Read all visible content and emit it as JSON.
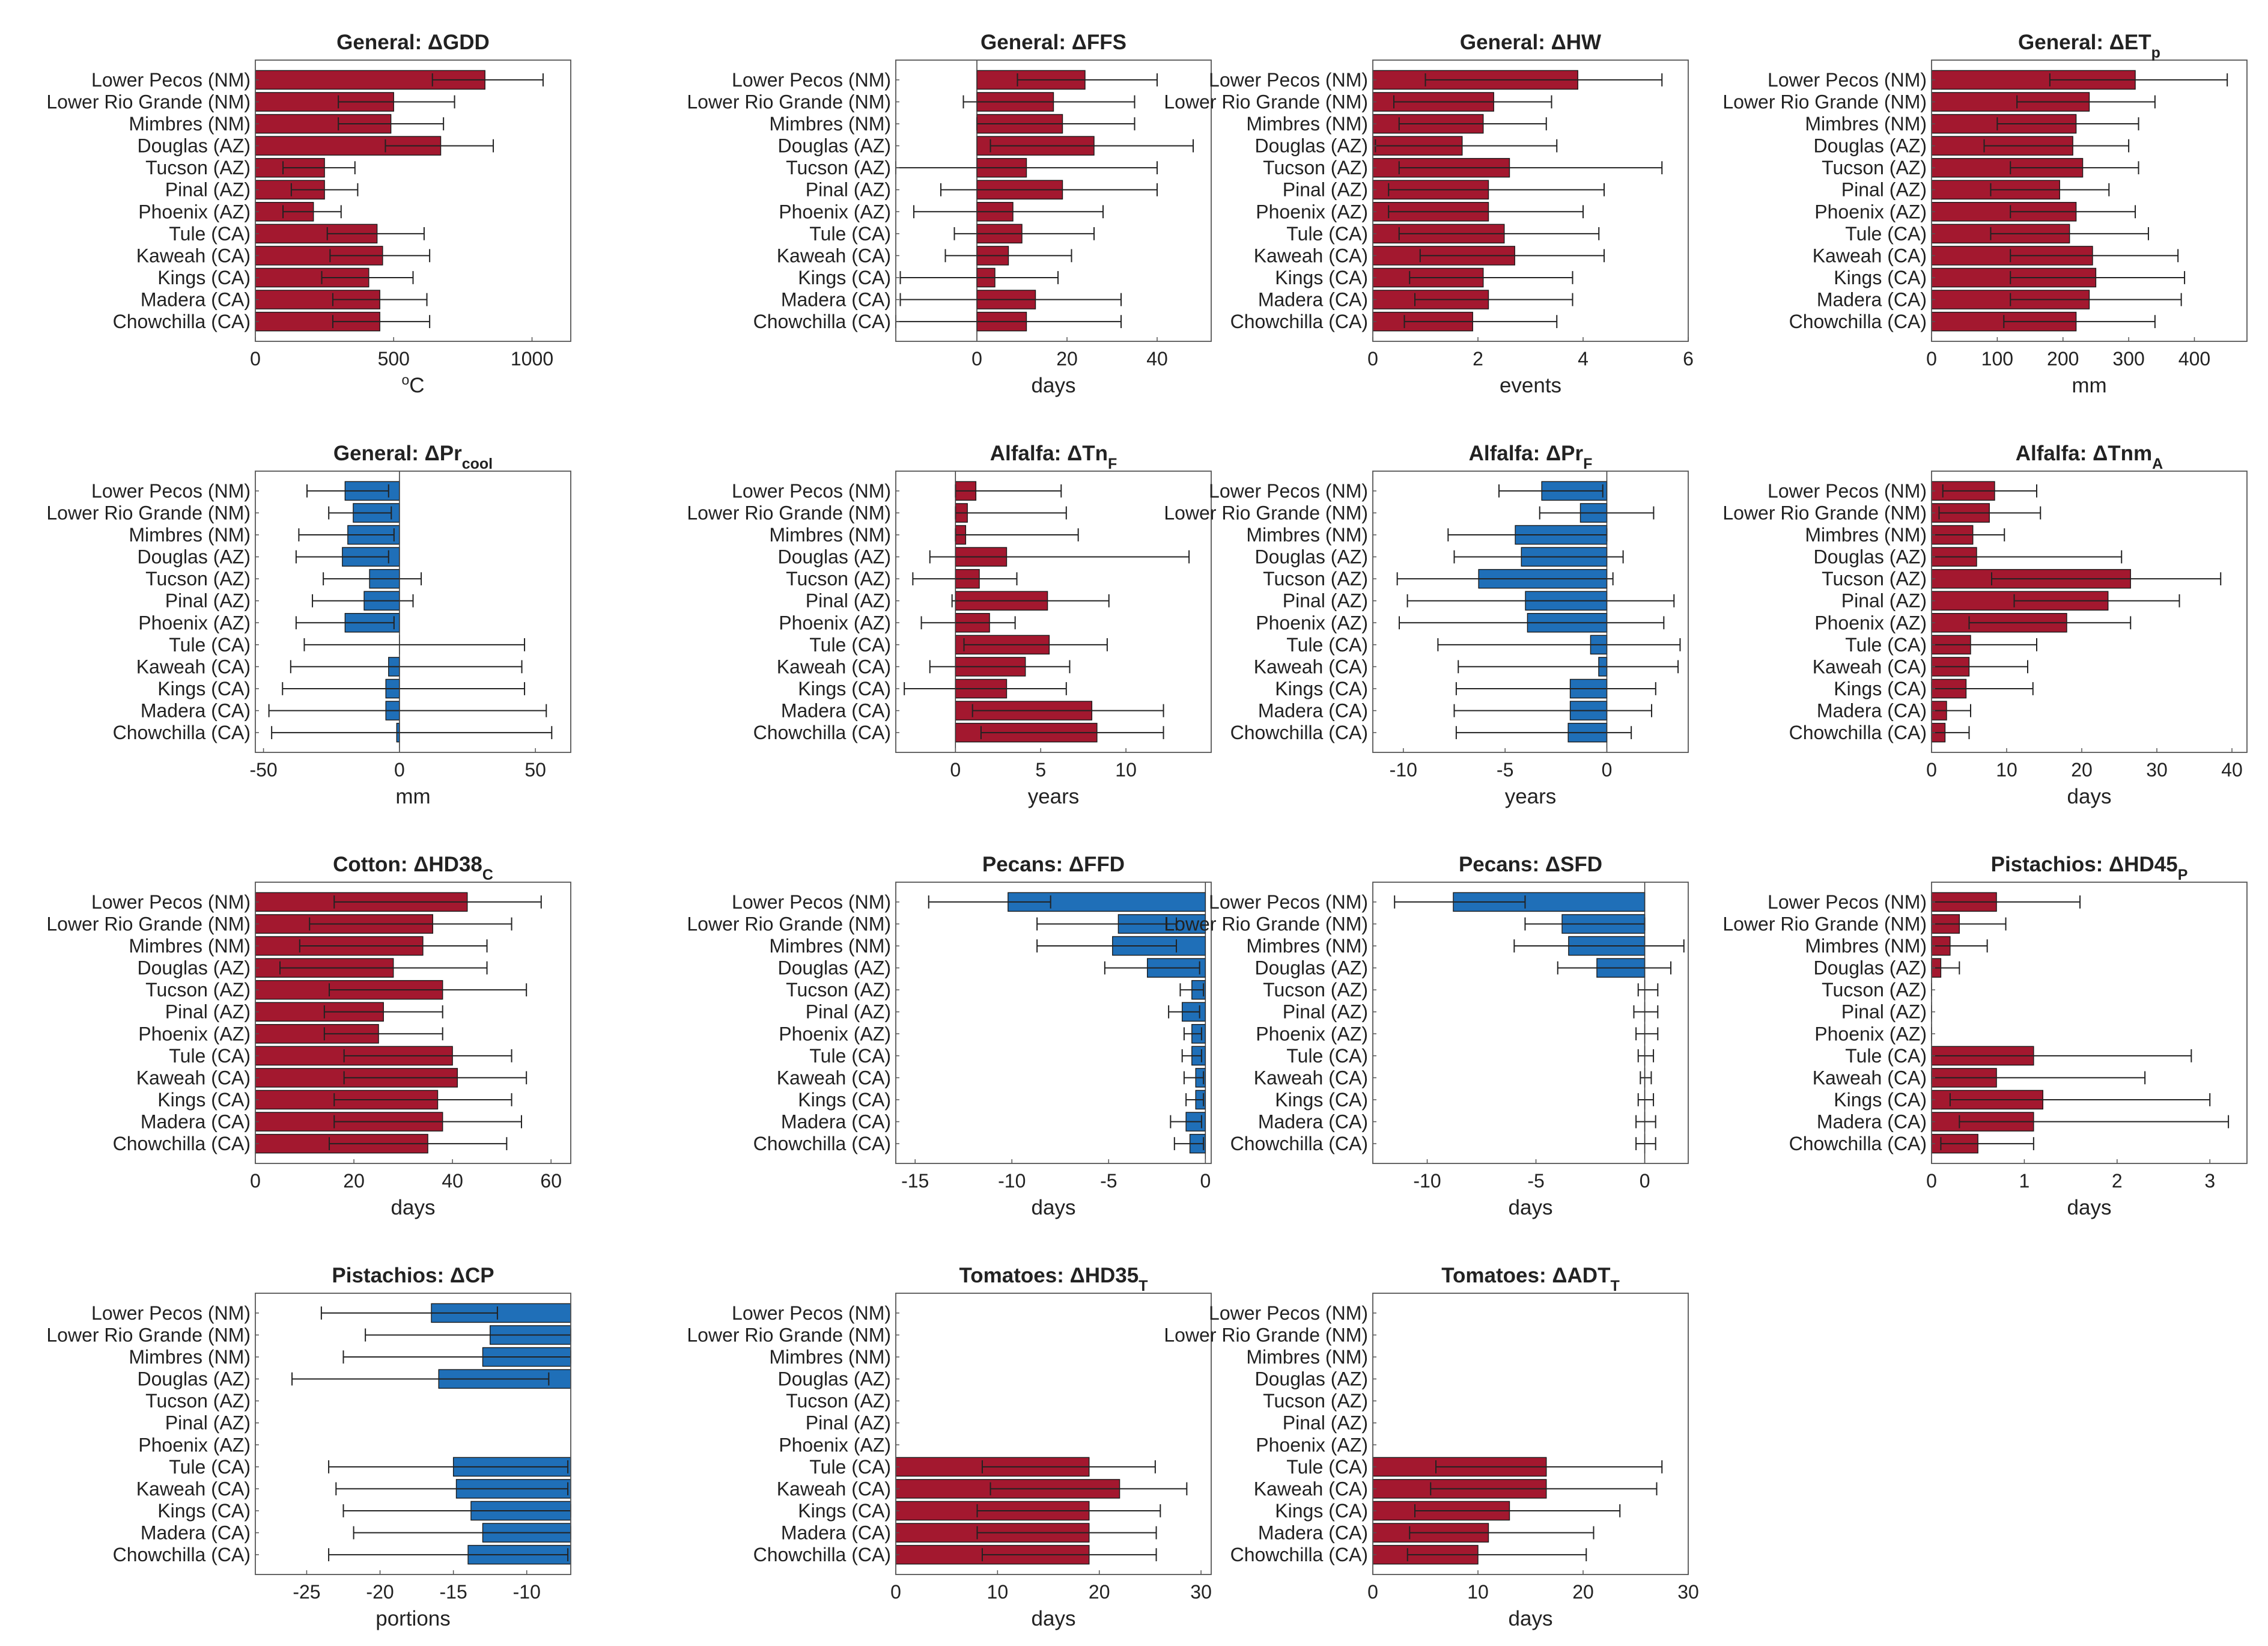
{
  "figure": {
    "categories": [
      "Lower Pecos (NM)",
      "Lower Rio Grande (NM)",
      "Mimbres (NM)",
      "Douglas (AZ)",
      "Tucson (AZ)",
      "Pinal (AZ)",
      "Phoenix (AZ)",
      "Tule (CA)",
      "Kaweah (CA)",
      "Kings (CA)",
      "Madera (CA)",
      "Chowchilla (CA)"
    ],
    "colors": {
      "positive": "#a3182f",
      "negative": "#1f6fb8",
      "axis": "#555555",
      "error_bar": "#222222"
    }
  },
  "chart_data": [
    {
      "type": "bar",
      "orientation": "horizontal",
      "title": "General: ΔGDD",
      "title_sub": "",
      "xlabel": "°C",
      "xlim": [
        0,
        1140
      ],
      "xticks": [
        0,
        500,
        1000
      ],
      "values": [
        830,
        500,
        490,
        670,
        250,
        250,
        210,
        440,
        460,
        410,
        450,
        450
      ],
      "err_low": [
        640,
        300,
        300,
        470,
        100,
        130,
        100,
        260,
        270,
        240,
        280,
        280
      ],
      "err_high": [
        1040,
        720,
        680,
        860,
        360,
        370,
        310,
        610,
        630,
        570,
        620,
        630
      ]
    },
    {
      "type": "bar",
      "orientation": "horizontal",
      "title": "General: ΔFFS",
      "title_sub": "",
      "xlabel": "days",
      "xlim": [
        -18,
        52
      ],
      "xticks": [
        0,
        20,
        40
      ],
      "values": [
        24,
        17,
        19,
        26,
        11,
        19,
        8,
        10,
        7,
        4,
        13,
        11
      ],
      "err_low": [
        9,
        -3,
        0,
        3,
        -18,
        -8,
        -14,
        -5,
        -7,
        -17,
        -17,
        -18
      ],
      "err_high": [
        40,
        35,
        35,
        48,
        40,
        40,
        28,
        26,
        21,
        18,
        32,
        32
      ]
    },
    {
      "type": "bar",
      "orientation": "horizontal",
      "title": "General: ΔHW",
      "title_sub": "",
      "xlabel": "events",
      "xlim": [
        0,
        6
      ],
      "xticks": [
        0,
        2,
        4,
        6
      ],
      "values": [
        3.9,
        2.3,
        2.1,
        1.7,
        2.6,
        2.2,
        2.2,
        2.5,
        2.7,
        2.1,
        2.2,
        1.9
      ],
      "err_low": [
        1.0,
        0.4,
        0.5,
        0.05,
        0.5,
        0.3,
        0.3,
        0.5,
        0.9,
        0.7,
        0.8,
        0.6
      ],
      "err_high": [
        5.5,
        3.4,
        3.3,
        3.5,
        5.5,
        4.4,
        4.0,
        4.3,
        4.4,
        3.8,
        3.8,
        3.5
      ]
    },
    {
      "type": "bar",
      "orientation": "horizontal",
      "title": "General: ΔET",
      "title_sub": "p",
      "xlabel": "mm",
      "xlim": [
        0,
        480
      ],
      "xticks": [
        0,
        100,
        200,
        300,
        400
      ],
      "values": [
        310,
        240,
        220,
        215,
        230,
        195,
        220,
        210,
        245,
        250,
        240,
        220
      ],
      "err_low": [
        180,
        130,
        100,
        80,
        120,
        90,
        120,
        90,
        120,
        120,
        120,
        110
      ],
      "err_high": [
        450,
        340,
        315,
        300,
        315,
        270,
        310,
        330,
        375,
        385,
        380,
        340
      ]
    },
    {
      "type": "bar",
      "orientation": "horizontal",
      "title": "General: ΔPr",
      "title_sub": "cool",
      "xlabel": "mm",
      "xlim": [
        -53,
        63
      ],
      "xticks": [
        -50,
        0,
        50
      ],
      "values": [
        -20,
        -17,
        -19,
        -21,
        -11,
        -13,
        -20,
        0,
        -4,
        -5,
        -5,
        -1
      ],
      "err_low": [
        -34,
        -26,
        -37,
        -38,
        -28,
        -32,
        -38,
        -35,
        -40,
        -43,
        -48,
        -47
      ],
      "err_high": [
        -4,
        -3,
        -2,
        -4,
        8,
        5,
        -2,
        46,
        45,
        46,
        54,
        56
      ]
    },
    {
      "type": "bar",
      "orientation": "horizontal",
      "title": "Alfalfa: ΔTn",
      "title_sub": "F",
      "xlabel": "years",
      "xlim": [
        -3.5,
        15
      ],
      "xticks": [
        0,
        5,
        10
      ],
      "values": [
        1.2,
        0.7,
        0.6,
        3.0,
        1.4,
        5.4,
        2.0,
        5.5,
        4.1,
        3.0,
        8.0,
        8.3
      ],
      "err_low": [
        0,
        0,
        0,
        -1.5,
        -2.5,
        -0.2,
        -2.0,
        0.5,
        -1.5,
        -3.0,
        1.0,
        1.5
      ],
      "err_high": [
        6.2,
        6.5,
        7.2,
        13.7,
        3.6,
        9.0,
        3.5,
        8.9,
        6.7,
        6.5,
        12.2,
        12.2
      ]
    },
    {
      "type": "bar",
      "orientation": "horizontal",
      "title": "Alfalfa: ΔPr",
      "title_sub": "F",
      "xlabel": "years",
      "xlim": [
        -11.5,
        4
      ],
      "xticks": [
        -10,
        -5,
        0
      ],
      "values": [
        -3.2,
        -1.3,
        -4.5,
        -4.2,
        -6.3,
        -4.0,
        -3.9,
        -0.8,
        -0.4,
        -1.8,
        -1.8,
        -1.9
      ],
      "err_low": [
        -5.3,
        -3.3,
        -7.8,
        -7.5,
        -10.3,
        -9.8,
        -10.2,
        -8.3,
        -7.3,
        -7.4,
        -7.5,
        -7.4
      ],
      "err_high": [
        -0.2,
        2.3,
        0,
        0.8,
        0.3,
        3.3,
        2.8,
        3.6,
        3.5,
        2.4,
        2.2,
        1.2
      ]
    },
    {
      "type": "bar",
      "orientation": "horizontal",
      "title": "Alfalfa: ΔTnm",
      "title_sub": "A",
      "xlabel": "days",
      "xlim": [
        0,
        42
      ],
      "xticks": [
        0,
        10,
        20,
        30,
        40
      ],
      "values": [
        8.4,
        7.7,
        5.5,
        6.0,
        26.5,
        23.5,
        18.0,
        5.2,
        5.0,
        4.6,
        2.0,
        1.8
      ],
      "err_low": [
        1.5,
        1.0,
        0,
        0,
        8.0,
        11.0,
        5.0,
        0,
        0,
        0,
        0,
        0
      ],
      "err_high": [
        14.0,
        14.5,
        9.7,
        25.3,
        38.5,
        33.0,
        26.5,
        14.0,
        12.8,
        13.5,
        5.2,
        5.0
      ]
    },
    {
      "type": "bar",
      "orientation": "horizontal",
      "title": "Cotton: ΔHD38",
      "title_sub": "C",
      "xlabel": "days",
      "xlim": [
        0,
        64
      ],
      "xticks": [
        0,
        20,
        40,
        60
      ],
      "values": [
        43,
        36,
        34,
        28,
        38,
        26,
        25,
        40,
        41,
        37,
        38,
        35
      ],
      "err_low": [
        16,
        11,
        9,
        5,
        15,
        14,
        14,
        18,
        18,
        16,
        16,
        15
      ],
      "err_high": [
        58,
        52,
        47,
        47,
        55,
        38,
        38,
        52,
        55,
        52,
        54,
        51
      ]
    },
    {
      "type": "bar",
      "orientation": "horizontal",
      "title": "Pecans: ΔFFD",
      "title_sub": "",
      "xlabel": "days",
      "xlim": [
        -16,
        0.3
      ],
      "xticks": [
        -15,
        -10,
        -5,
        0
      ],
      "values": [
        -10.2,
        -4.5,
        -4.8,
        -3.0,
        -0.7,
        -1.2,
        -0.7,
        -0.7,
        -0.5,
        -0.5,
        -1.0,
        -0.8
      ],
      "err_low": [
        -14.3,
        -8.7,
        -8.7,
        -5.2,
        -1.3,
        -1.9,
        -1.1,
        -1.2,
        -1.1,
        -1.0,
        -1.8,
        -1.6
      ],
      "err_high": [
        -8.0,
        -1.5,
        -1.5,
        -0.3,
        -0.1,
        -0.3,
        -0.2,
        -0.2,
        -0.1,
        -0.1,
        -0.2,
        -0.1
      ]
    },
    {
      "type": "bar",
      "orientation": "horizontal",
      "title": "Pecans: ΔSFD",
      "title_sub": "",
      "xlabel": "days",
      "xlim": [
        -12.5,
        2
      ],
      "xticks": [
        -10,
        -5,
        0
      ],
      "values": [
        -8.8,
        -3.8,
        -3.5,
        -2.2,
        0,
        0,
        0,
        0,
        0,
        0,
        0,
        0
      ],
      "err_low": [
        -11.5,
        -5.5,
        -6.0,
        -4.0,
        -0.3,
        -0.5,
        -0.4,
        -0.3,
        -0.2,
        -0.3,
        -0.4,
        -0.4
      ],
      "err_high": [
        -5.5,
        0,
        1.8,
        1.2,
        0.6,
        0.6,
        0.6,
        0.4,
        0.3,
        0.4,
        0.5,
        0.5
      ]
    },
    {
      "type": "bar",
      "orientation": "horizontal",
      "title": "Pistachios: ΔHD45",
      "title_sub": "P",
      "xlabel": "days",
      "xlim": [
        0,
        3.4
      ],
      "xticks": [
        0,
        1,
        2,
        3
      ],
      "values": [
        0.7,
        0.3,
        0.2,
        0.1,
        0,
        0,
        0,
        1.1,
        0.7,
        1.2,
        1.1,
        0.5
      ],
      "err_low": [
        0,
        0,
        0,
        0,
        0,
        0,
        0,
        0,
        0,
        0.2,
        0.3,
        0.1
      ],
      "err_high": [
        1.6,
        0.8,
        0.6,
        0.3,
        0,
        0,
        0,
        2.8,
        2.3,
        3.0,
        3.2,
        1.1
      ]
    },
    {
      "type": "bar",
      "orientation": "horizontal",
      "title": "Pistachios: ΔCP",
      "title_sub": "",
      "xlabel": "portions",
      "xlim": [
        -28.5,
        -7
      ],
      "xticks": [
        -25,
        -20,
        -15,
        -10
      ],
      "values": [
        -16.5,
        -12.5,
        -13.0,
        -16.0,
        null,
        null,
        null,
        -15.0,
        -14.8,
        -13.8,
        -13.0,
        -14.0
      ],
      "err_low": [
        -24.0,
        -21.0,
        -22.5,
        -26.0,
        null,
        null,
        null,
        -23.5,
        -23.0,
        -22.5,
        -21.8,
        -23.5
      ],
      "err_high": [
        -12.0,
        -7,
        -7,
        -8.5,
        null,
        null,
        null,
        -7.2,
        -7.2,
        -7,
        -7,
        -7.2
      ]
    },
    {
      "type": "bar",
      "orientation": "horizontal",
      "title": "Tomatoes: ΔHD35",
      "title_sub": "T",
      "xlabel": "days",
      "xlim": [
        0,
        31
      ],
      "xticks": [
        0,
        10,
        20,
        30
      ],
      "values": [
        null,
        null,
        null,
        null,
        null,
        null,
        null,
        19,
        22,
        19,
        19,
        19
      ],
      "err_low": [
        null,
        null,
        null,
        null,
        null,
        null,
        null,
        8.5,
        9.3,
        8,
        8,
        8.5
      ],
      "err_high": [
        null,
        null,
        null,
        null,
        null,
        null,
        null,
        25.5,
        28.6,
        26,
        25.6,
        25.6
      ]
    },
    {
      "type": "bar",
      "orientation": "horizontal",
      "title": "Tomatoes: ΔADT",
      "title_sub": "T",
      "xlabel": "days",
      "xlim": [
        0,
        30
      ],
      "xticks": [
        0,
        10,
        20,
        30
      ],
      "values": [
        null,
        null,
        null,
        null,
        null,
        null,
        null,
        16.5,
        16.5,
        13,
        11,
        10
      ],
      "err_low": [
        null,
        null,
        null,
        null,
        null,
        null,
        null,
        6.0,
        5.5,
        4.0,
        3.5,
        3.3
      ],
      "err_high": [
        null,
        null,
        null,
        null,
        null,
        null,
        null,
        27.5,
        27.0,
        23.5,
        21.0,
        20.3
      ]
    }
  ]
}
